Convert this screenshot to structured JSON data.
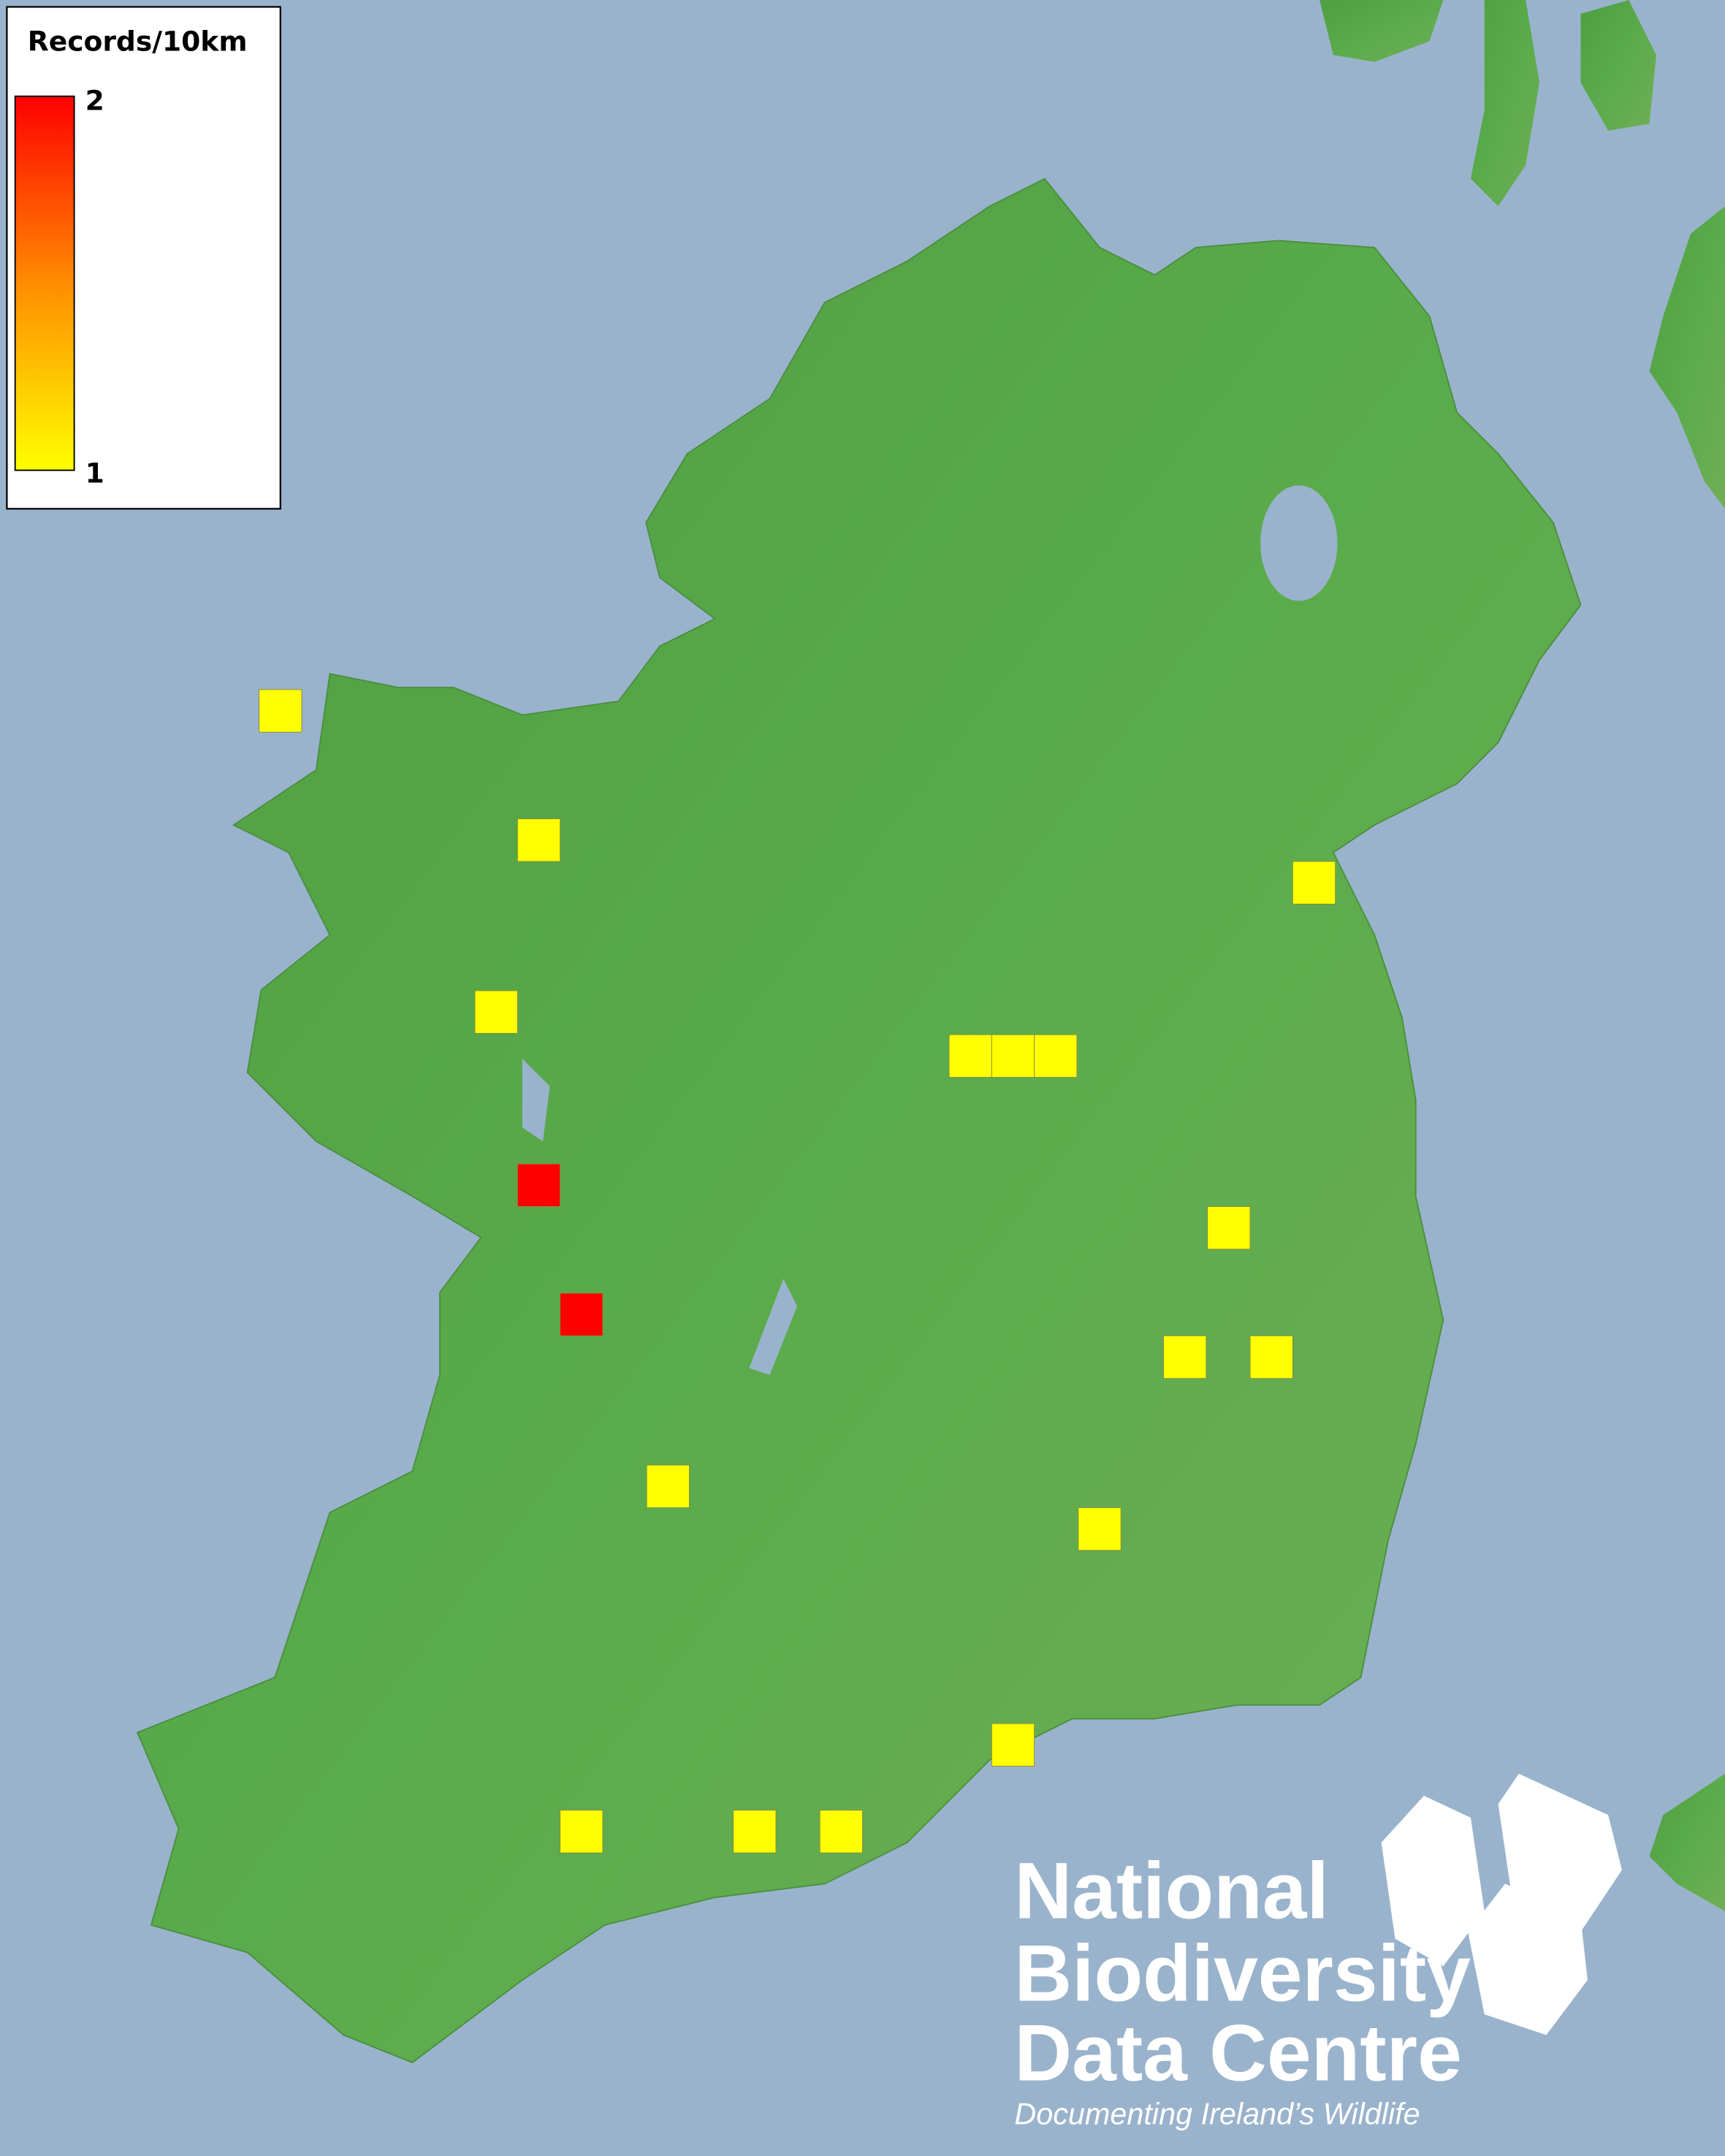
{
  "legend": {
    "title": "Records/10km",
    "max_label": "2",
    "min_label": "1",
    "color_min": "#ffff00",
    "color_max": "#ff0000"
  },
  "map": {
    "sea_color": "#9ab3cc",
    "land_color": "#55a548",
    "records": [
      1,
      1,
      1,
      1,
      1,
      1,
      1,
      1,
      1,
      1,
      1,
      1,
      1,
      1,
      1,
      1,
      2,
      2
    ]
  },
  "logo": {
    "line1": "National",
    "line2": "Biodiversity",
    "line3": "Data Centre",
    "tagline": "Documenting Ireland’s Wildlife",
    "icons": [
      "tree-icon",
      "butterfly-icon",
      "seahorse-icon"
    ]
  }
}
